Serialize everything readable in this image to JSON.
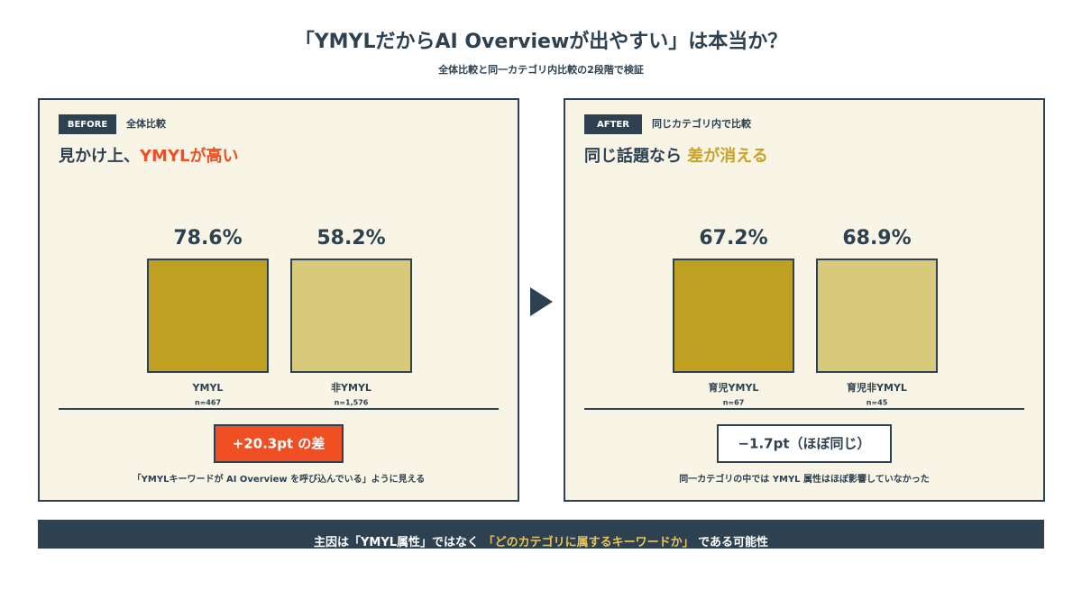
{
  "title": "「YMYLだからAI Overviewが出やすい」は本当か？",
  "subtitle": "全体比較と同一カテゴリ内比較の2段階で検証",
  "chart_data": [
    {
      "type": "bar",
      "tag": "BEFORE",
      "tag_note": "全体比較",
      "heading": "見かけ上、",
      "heading_highlight": "YMYLが高い",
      "highlight_color": "#f04e23",
      "categories": [
        "YMYL",
        "非YMYL"
      ],
      "sample_sizes": [
        "n=467",
        "n=1,576"
      ],
      "values": [
        78.6,
        58.2
      ],
      "value_labels": [
        "78.6%",
        "58.2%"
      ],
      "colors": [
        "#c0a020",
        "#d9c97a"
      ],
      "diff_label": "+20.3pt の差",
      "diff_color": "#f04e23",
      "note": "「YMYLキーワードが AI Overview を呼び込んでいる」ように見える"
    },
    {
      "type": "bar",
      "tag": "AFTER",
      "tag_note": "同じカテゴリ内で比較",
      "heading": "同じ話題なら ",
      "heading_highlight": "差が消える",
      "highlight_color": "#c9a227",
      "categories": [
        "育児YMYL",
        "育児非YMYL"
      ],
      "sample_sizes": [
        "n=67",
        "n=45"
      ],
      "values": [
        67.2,
        68.9
      ],
      "value_labels": [
        "67.2%",
        "68.9%"
      ],
      "colors": [
        "#c0a020",
        "#d9c97a"
      ],
      "diff_label": "−1.7pt（ほぼ同じ）",
      "diff_color": "#ffffff",
      "note": "同一カテゴリの中では YMYL 属性はほぼ影響していなかった"
    }
  ],
  "footer": {
    "text": "主因は「YMYL属性」ではなく",
    "highlight": "「どのカテゴリに属するキーワードか」",
    "tail": "である可能性"
  }
}
